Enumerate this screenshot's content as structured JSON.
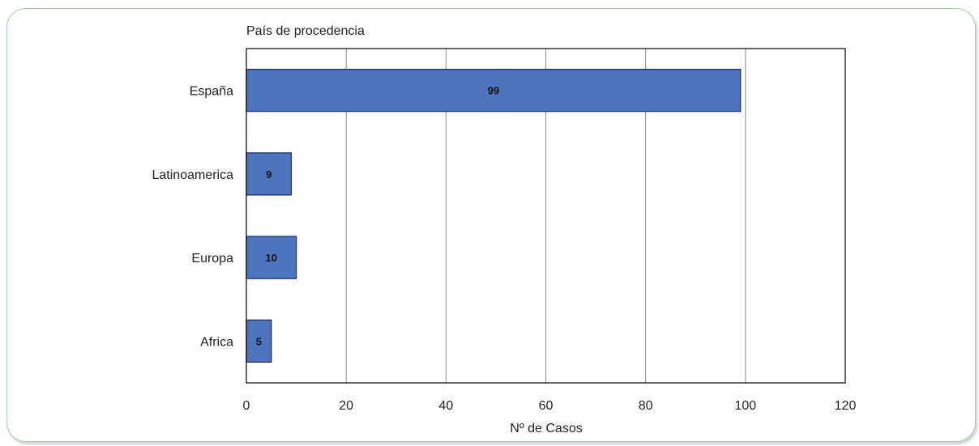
{
  "chart_data": {
    "type": "bar",
    "orientation": "horizontal",
    "title": "País de procedencia",
    "xlabel": "Nº de Casos",
    "ylabel": "",
    "categories": [
      "España",
      "Latinoamerica",
      "Europa",
      "Africa"
    ],
    "values": [
      99,
      9,
      10,
      5
    ],
    "data_labels": [
      "99",
      "9",
      "10",
      "5"
    ],
    "xlim": [
      0,
      120
    ],
    "xticks": [
      0,
      20,
      40,
      60,
      80,
      100,
      120
    ],
    "xtick_labels": [
      "0",
      "20",
      "40",
      "60",
      "80",
      "100",
      "120"
    ],
    "grid": "vertical",
    "legend": "none",
    "bar_color": "#4f74be",
    "bar_edge_color": "#1f2f6f",
    "grid_color": "#8c8c8c"
  }
}
